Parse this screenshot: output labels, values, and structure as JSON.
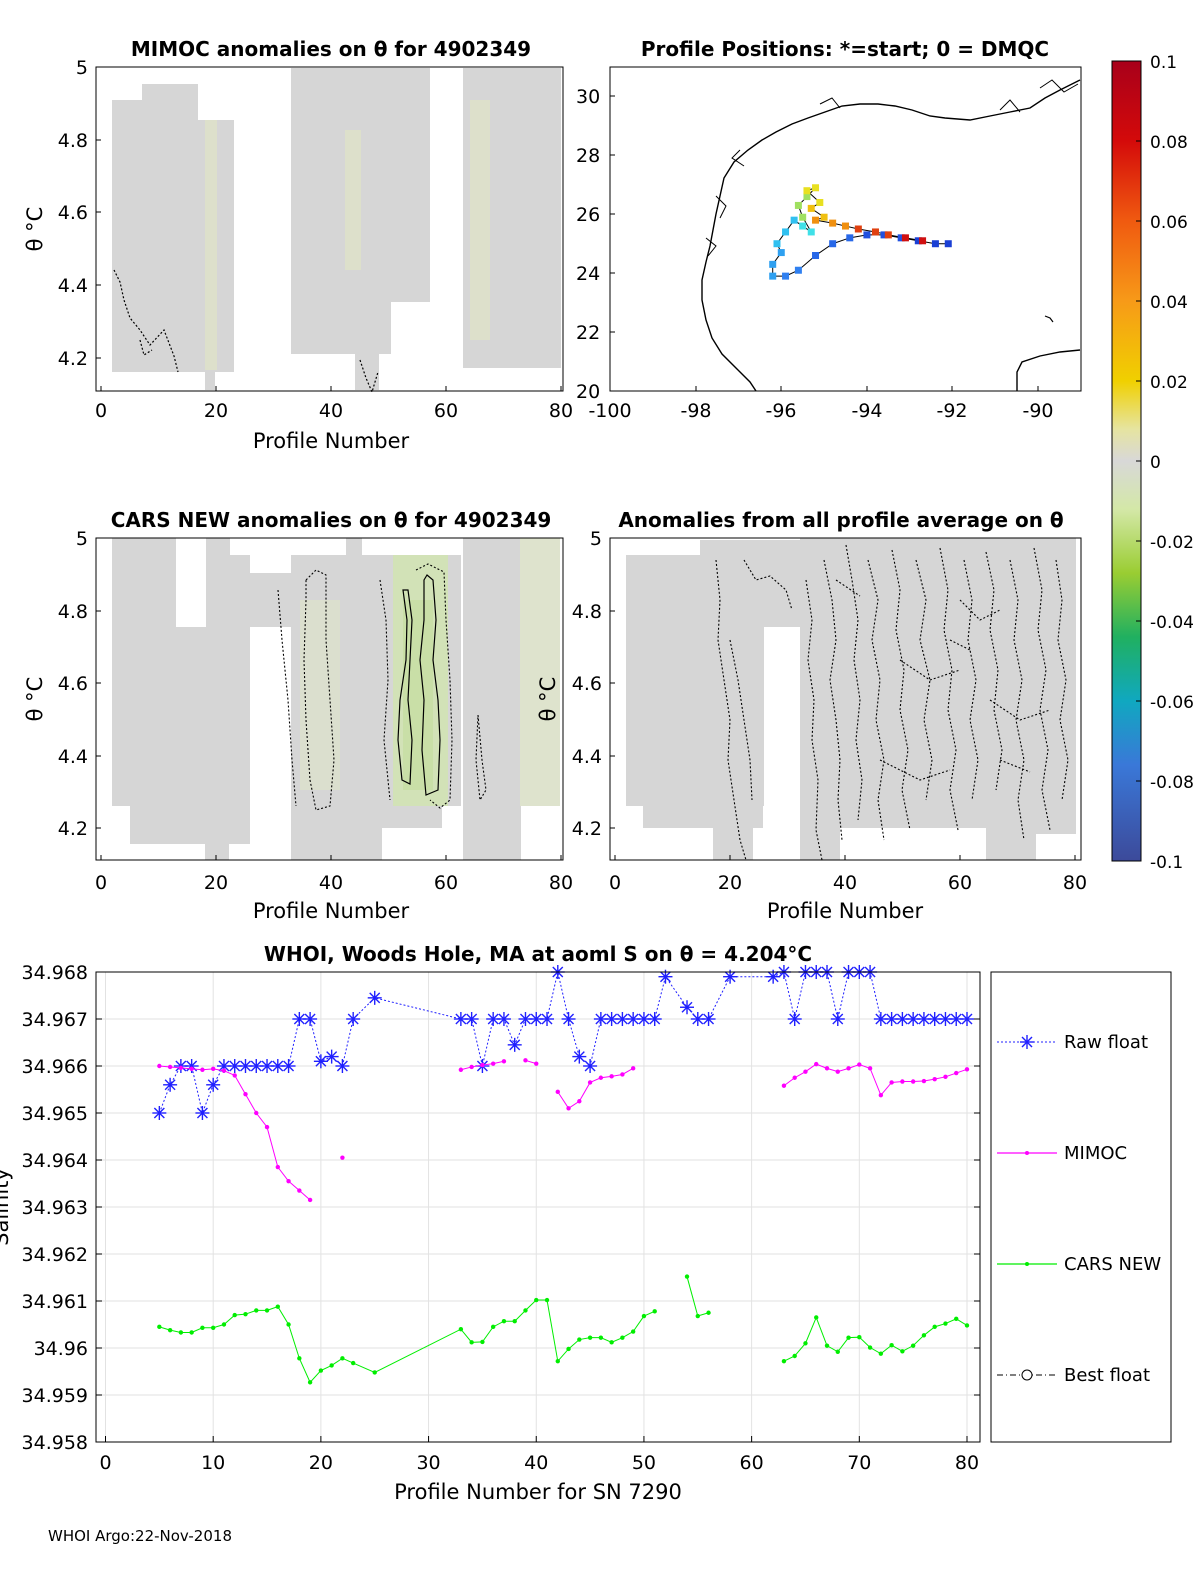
{
  "footer": "WHOI Argo:22-Nov-2018",
  "colorbar": {
    "ticks": [
      "0.1",
      "0.08",
      "0.06",
      "0.04",
      "0.02",
      "0",
      "-0.02",
      "-0.04",
      "-0.06",
      "-0.08",
      "-0.1"
    ],
    "range": [
      -0.1,
      0.1
    ]
  },
  "chart_data": [
    {
      "type": "heatmap",
      "title": "MIMOC anomalies on θ  for 4902349",
      "xlabel": "Profile Number",
      "ylabel": "θ °C",
      "xlim": [
        0,
        81
      ],
      "ylim": [
        4.11,
        5.0
      ],
      "xticks": [
        "0",
        "20",
        "40",
        "60",
        "80"
      ],
      "yticks": [
        "5",
        "4.8",
        "4.6",
        "4.4",
        "4.2"
      ],
      "yticklabels": [
        "5",
        "4.8",
        "4.6",
        "4.4",
        "4.2"
      ]
    },
    {
      "type": "scatter",
      "title": "Profile Positions: *=start; 0 = DMQC",
      "xlim": [
        -100,
        -89
      ],
      "ylim": [
        20,
        31
      ],
      "xticks": [
        "-100",
        "-98",
        "-96",
        "-94",
        "-92",
        "-90"
      ],
      "yticks": [
        "30",
        "28",
        "26",
        "24",
        "22",
        "20"
      ],
      "track": [
        [
          -92.1,
          25.0
        ],
        [
          -92.4,
          25.0
        ],
        [
          -92.8,
          25.1
        ],
        [
          -93.2,
          25.2
        ],
        [
          -93.6,
          25.3
        ],
        [
          -94.0,
          25.3
        ],
        [
          -94.4,
          25.2
        ],
        [
          -94.8,
          25.0
        ],
        [
          -95.2,
          24.6
        ],
        [
          -95.6,
          24.1
        ],
        [
          -95.9,
          23.9
        ],
        [
          -96.2,
          23.9
        ],
        [
          -96.2,
          24.3
        ],
        [
          -96.0,
          24.7
        ],
        [
          -96.1,
          25.0
        ],
        [
          -95.9,
          25.4
        ],
        [
          -95.7,
          25.8
        ],
        [
          -95.5,
          25.6
        ],
        [
          -95.3,
          25.4
        ],
        [
          -95.5,
          25.9
        ],
        [
          -95.6,
          26.3
        ],
        [
          -95.4,
          26.6
        ],
        [
          -95.2,
          26.9
        ],
        [
          -95.4,
          26.8
        ],
        [
          -95.1,
          26.4
        ],
        [
          -95.3,
          26.2
        ],
        [
          -95.0,
          25.9
        ],
        [
          -95.2,
          25.8
        ],
        [
          -94.8,
          25.7
        ],
        [
          -94.5,
          25.6
        ],
        [
          -94.2,
          25.5
        ],
        [
          -93.8,
          25.4
        ],
        [
          -93.5,
          25.3
        ],
        [
          -93.1,
          25.2
        ],
        [
          -92.7,
          25.1
        ]
      ]
    },
    {
      "type": "heatmap",
      "title": "CARS NEW anomalies on θ for 4902349",
      "xlabel": "Profile Number",
      "ylabel": "θ °C",
      "xlim": [
        0,
        81
      ],
      "ylim": [
        4.11,
        5.0
      ],
      "xticks": [
        "0",
        "20",
        "40",
        "60",
        "80"
      ],
      "yticks": [
        "5",
        "4.8",
        "4.6",
        "4.4",
        "4.2"
      ]
    },
    {
      "type": "heatmap",
      "title": "Anomalies from all profile average on θ",
      "xlabel": "Profile Number",
      "ylabel": "θ °C",
      "xlim": [
        0,
        81
      ],
      "ylim": [
        4.11,
        5.0
      ],
      "xticks": [
        "0",
        "20",
        "40",
        "60",
        "80"
      ],
      "yticks": [
        "5",
        "4.8",
        "4.6",
        "4.4",
        "4.2"
      ]
    },
    {
      "type": "line",
      "title": "WHOI, Woods Hole, MA at aoml S on θ = 4.204°C",
      "xlabel": "Profile Number for SN 7290",
      "ylabel": "Salinity",
      "xlim": [
        0,
        81
      ],
      "ylim": [
        34.958,
        34.968
      ],
      "xticks": [
        "0",
        "10",
        "20",
        "30",
        "40",
        "50",
        "60",
        "70",
        "80"
      ],
      "yticks": [
        "34.958",
        "34.959",
        "34.96",
        "34.961",
        "34.962",
        "34.963",
        "34.964",
        "34.965",
        "34.966",
        "34.967",
        "34.968"
      ],
      "legend_position": "right",
      "series": [
        {
          "name": "Raw float",
          "color": "#2020ff",
          "marker": "asterisk",
          "x": [
            5,
            6,
            7,
            8,
            9,
            10,
            11,
            12,
            13,
            14,
            15,
            16,
            17,
            18,
            19,
            20,
            21,
            22,
            23,
            25,
            33,
            34,
            35,
            36,
            37,
            38,
            39,
            40,
            41,
            42,
            43,
            44,
            45,
            46,
            47,
            48,
            49,
            50,
            51,
            52,
            54,
            55,
            56,
            58,
            62,
            63,
            64,
            65,
            66,
            67,
            68,
            69,
            70,
            71,
            72,
            73,
            74,
            75,
            76,
            77,
            78,
            79,
            80
          ],
          "y": [
            34.965,
            34.9656,
            34.966,
            34.966,
            34.965,
            34.9656,
            34.966,
            34.966,
            34.966,
            34.966,
            34.966,
            34.966,
            34.966,
            34.967,
            34.967,
            34.9661,
            34.9662,
            34.966,
            34.967,
            34.96745,
            34.967,
            34.967,
            34.966,
            34.967,
            34.967,
            34.96645,
            34.967,
            34.967,
            34.967,
            34.968,
            34.967,
            34.9662,
            34.966,
            34.967,
            34.967,
            34.967,
            34.967,
            34.967,
            34.967,
            34.9679,
            34.96725,
            34.967,
            34.967,
            34.9679,
            34.9679,
            34.968,
            34.967,
            34.968,
            34.968,
            34.968,
            34.967,
            34.968,
            34.968,
            34.968,
            34.967,
            34.967,
            34.967,
            34.967,
            34.967,
            34.967,
            34.967,
            34.967,
            34.967
          ]
        },
        {
          "name": "MIMOC",
          "color": "#ff00ff",
          "marker": "dot",
          "x": [
            5,
            6,
            7,
            8,
            9,
            10,
            11,
            12,
            13,
            14,
            15,
            16,
            17,
            18,
            19,
            null,
            22,
            null,
            33,
            34,
            35,
            36,
            37,
            null,
            39,
            40,
            null,
            42,
            43,
            44,
            45,
            46,
            47,
            48,
            49,
            null,
            63,
            64,
            65,
            66,
            67,
            68,
            69,
            70,
            71,
            72,
            73,
            74,
            75,
            76,
            77,
            78,
            79,
            80
          ],
          "y": [
            34.966,
            34.96598,
            34.96596,
            34.96594,
            34.96592,
            34.96594,
            34.9659,
            34.9658,
            34.9654,
            34.965,
            34.9647,
            34.96385,
            34.96355,
            34.96335,
            34.96315,
            null,
            34.96405,
            null,
            34.96592,
            34.96598,
            34.96602,
            34.96605,
            34.9661,
            null,
            34.96612,
            34.96605,
            null,
            34.96545,
            34.9651,
            34.96525,
            34.96565,
            34.96575,
            34.96578,
            34.96582,
            34.96595,
            null,
            34.96558,
            34.96575,
            34.96588,
            34.96604,
            34.96595,
            34.96588,
            34.96595,
            34.96603,
            34.96595,
            34.96538,
            34.96565,
            34.96567,
            34.96567,
            34.96568,
            34.96572,
            34.96577,
            34.96585,
            34.96593
          ]
        },
        {
          "name": "CARS NEW",
          "color": "#00ee00",
          "marker": "dot",
          "x": [
            5,
            6,
            7,
            8,
            9,
            10,
            11,
            12,
            13,
            14,
            15,
            16,
            17,
            18,
            19,
            20,
            21,
            22,
            23,
            25,
            33,
            34,
            35,
            36,
            37,
            38,
            39,
            40,
            41,
            42,
            43,
            44,
            45,
            46,
            47,
            48,
            49,
            50,
            51,
            null,
            54,
            55,
            56,
            null,
            63,
            64,
            65,
            66,
            67,
            68,
            69,
            70,
            71,
            72,
            73,
            74,
            75,
            76,
            77,
            78,
            79,
            80
          ],
          "y": [
            34.96045,
            34.96038,
            34.96033,
            34.96033,
            34.96043,
            34.96043,
            34.9605,
            34.9607,
            34.96072,
            34.9608,
            34.9608,
            34.96088,
            34.9605,
            34.95978,
            34.95927,
            34.95952,
            34.95963,
            34.95978,
            34.95968,
            34.95948,
            34.9604,
            34.96012,
            34.96013,
            34.96045,
            34.96057,
            34.96057,
            34.9608,
            34.96102,
            34.96102,
            34.95972,
            34.95998,
            34.96018,
            34.96022,
            34.96022,
            34.96012,
            34.96022,
            34.96035,
            34.96068,
            34.96078,
            null,
            34.96152,
            34.96068,
            34.96075,
            null,
            34.95972,
            34.95983,
            34.9601,
            34.96065,
            34.96005,
            34.95992,
            34.96022,
            34.96023,
            34.96001,
            34.95988,
            34.96006,
            34.95993,
            34.96005,
            34.96027,
            34.96045,
            34.96052,
            34.96062,
            34.96048
          ]
        },
        {
          "name": "Best float",
          "color": "#000000",
          "marker": "circle",
          "x": [],
          "y": []
        }
      ]
    }
  ]
}
